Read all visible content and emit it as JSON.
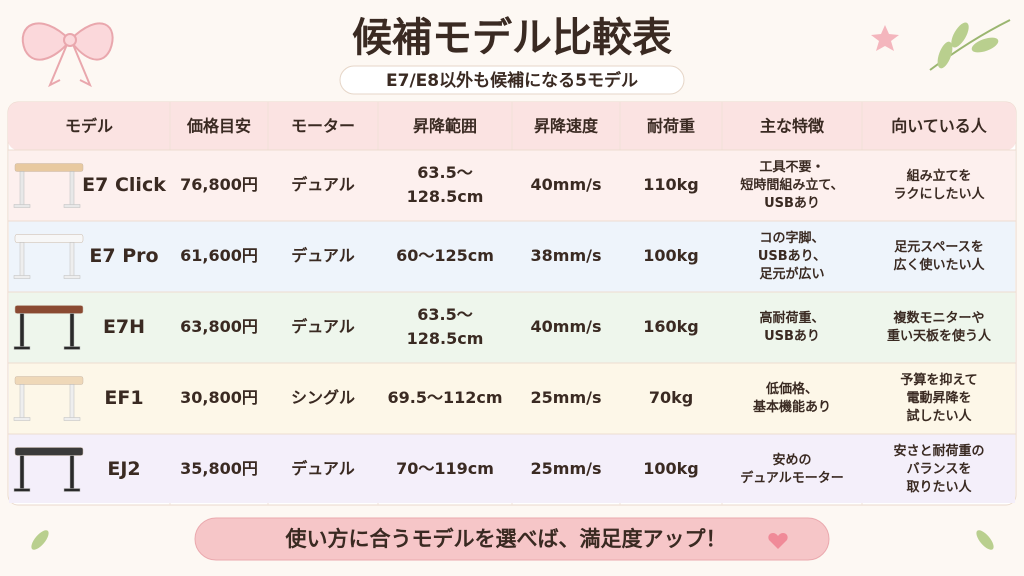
{
  "header": {
    "title": "候補モデル比較表",
    "subtitle": "E7/E8以外も候補になる5モデル"
  },
  "table": {
    "headers": [
      "モデル",
      "価格目安",
      "モーター",
      "昇降範囲",
      "昇降速度",
      "耐荷重",
      "主な特徴",
      "向いている人"
    ],
    "rows": [
      [
        "E7 Click",
        "76,800円",
        "デュアル",
        [
          "63.5〜",
          "128.5cm"
        ],
        "40mm/s",
        "110kg",
        [
          "工具不要・",
          "短時間組み立て、",
          "USBあり"
        ],
        [
          "組み立てを",
          "ラクにしたい人"
        ]
      ],
      [
        "E7 Pro",
        "61,600円",
        "デュアル",
        "60〜125cm",
        "38mm/s",
        "100kg",
        [
          "コの字脚、",
          "USBあり、",
          "足元が広い"
        ],
        [
          "足元スペースを",
          "広く使いたい人"
        ]
      ],
      [
        "E7H",
        "63,800円",
        "デュアル",
        [
          "63.5〜",
          "128.5cm"
        ],
        "40mm/s",
        "160kg",
        [
          "高耐荷重、",
          "USBあり"
        ],
        [
          "複数モニターや",
          "重い天板を使う人"
        ]
      ],
      [
        "EF1",
        "30,800円",
        "シングル",
        "69.5〜112cm",
        "25mm/s",
        "70kg",
        [
          "低価格、",
          "基本機能あり"
        ],
        [
          "予算を抑えて",
          "電動昇降を",
          "試したい人"
        ]
      ],
      [
        "EJ2",
        "35,800円",
        "デュアル",
        "70〜119cm",
        "25mm/s",
        "100kg",
        [
          "安めの",
          "デュアルモーター"
        ],
        [
          "安さと耐荷重の",
          "バランスを",
          "取りたい人"
        ]
      ]
    ]
  },
  "footer": {
    "message": "使い方に合うモデルを選べば、満足度アップ！"
  }
}
